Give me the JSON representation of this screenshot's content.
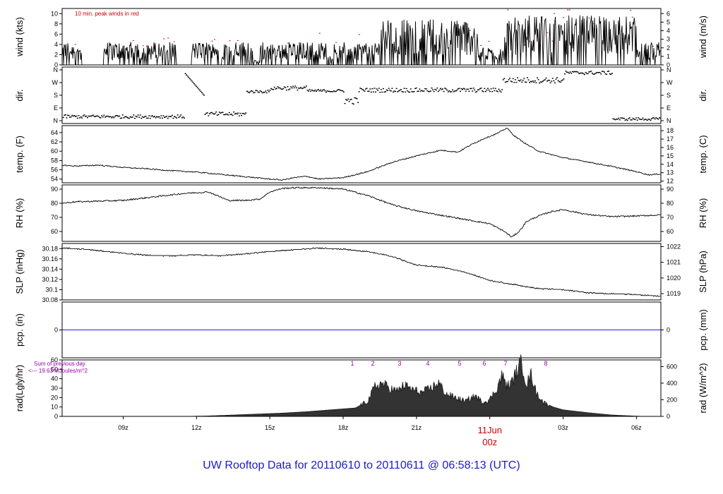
{
  "title": "UW Rooftop Data for 20110610  to  20110611 @ 06:58:13  (UTC)",
  "chart_data": {
    "type": "line",
    "x_ticks": [
      "09z",
      "12z",
      "15z",
      "18z",
      "21z",
      "00z",
      "03z",
      "06z"
    ],
    "date_label": "11Jun",
    "date_sublabel": "00z",
    "panels": [
      {
        "id": "wind",
        "ylabel_left": "wind (kts)",
        "ylabel_right": "wind (m/s)",
        "ylim": [
          0,
          11
        ],
        "yticks_left": [
          0,
          2,
          4,
          6,
          8,
          10
        ],
        "yticks_right": [
          0,
          1,
          2,
          3,
          4,
          5,
          6
        ],
        "note": "10 min. peak winds in red",
        "series": [
          {
            "type": "line",
            "color": "#000000"
          },
          {
            "type": "points",
            "color": "#cc0000"
          }
        ]
      },
      {
        "id": "dir",
        "ylabel_left": "dir.",
        "ylabel_right": "dir.",
        "ylim": [
          0,
          360
        ],
        "yticks_left": [
          "N",
          "E",
          "S",
          "W",
          "N"
        ],
        "yticks_right": [
          "N",
          "E",
          "S",
          "W",
          "N"
        ],
        "series": [
          {
            "type": "points",
            "color": "#000000"
          }
        ]
      },
      {
        "id": "temp",
        "ylabel_left": "temp. (F)",
        "ylabel_right": "temp. (C)",
        "ylim": [
          53.2,
          65.5
        ],
        "yticks_left": [
          54,
          56,
          58,
          60,
          62,
          64
        ],
        "yticks_right": [
          12,
          13,
          14,
          15,
          16,
          17,
          18
        ],
        "series": [
          {
            "type": "line",
            "color": "#000000",
            "points": [
              [
                6.5,
                57
              ],
              [
                7,
                56.8
              ],
              [
                8,
                57
              ],
              [
                9,
                56.5
              ],
              [
                10,
                56.2
              ],
              [
                11,
                55.8
              ],
              [
                12,
                55.5
              ],
              [
                13,
                55
              ],
              [
                14,
                54.5
              ],
              [
                15,
                54
              ],
              [
                15.5,
                53.8
              ],
              [
                16,
                54.3
              ],
              [
                16.5,
                54.6
              ],
              [
                17,
                54
              ],
              [
                18,
                54.3
              ],
              [
                19,
                55.6
              ],
              [
                20,
                57.6
              ],
              [
                21,
                59
              ],
              [
                22,
                60.2
              ],
              [
                22.7,
                59.8
              ],
              [
                23.2,
                61.3
              ],
              [
                23.8,
                62.8
              ],
              [
                24.3,
                63.8
              ],
              [
                24.7,
                65
              ],
              [
                25,
                63.3
              ],
              [
                25.5,
                61.5
              ],
              [
                26,
                60
              ],
              [
                27,
                58.6
              ],
              [
                28,
                57.7
              ],
              [
                29,
                56.7
              ],
              [
                30,
                55.6
              ],
              [
                30.5,
                54.9
              ],
              [
                31,
                55.1
              ]
            ]
          }
        ]
      },
      {
        "id": "rh",
        "ylabel_left": "RH (%)",
        "ylabel_right": "RH (%)",
        "ylim": [
          53,
          93
        ],
        "yticks_left": [
          60,
          70,
          80,
          90
        ],
        "yticks_right": [
          60,
          70,
          80,
          90
        ],
        "series": [
          {
            "type": "line",
            "color": "#000000",
            "points": [
              [
                6.5,
                80
              ],
              [
                7,
                81
              ],
              [
                9,
                82
              ],
              [
                10.5,
                85
              ],
              [
                11.5,
                87
              ],
              [
                12.5,
                88
              ],
              [
                13.3,
                82
              ],
              [
                14,
                82
              ],
              [
                14.6,
                83
              ],
              [
                15,
                88
              ],
              [
                15.5,
                90.5
              ],
              [
                16,
                91
              ],
              [
                17,
                91
              ],
              [
                18,
                90
              ],
              [
                19,
                85.5
              ],
              [
                20,
                79
              ],
              [
                21,
                74.6
              ],
              [
                22,
                71.5
              ],
              [
                23,
                68.5
              ],
              [
                24,
                65.5
              ],
              [
                24.6,
                60
              ],
              [
                24.9,
                56
              ],
              [
                25.2,
                60
              ],
              [
                25.5,
                67
              ],
              [
                26,
                71
              ],
              [
                26.5,
                74
              ],
              [
                27,
                75.5
              ],
              [
                28,
                72
              ],
              [
                29,
                70.5
              ],
              [
                30,
                71
              ],
              [
                31,
                71.7
              ]
            ]
          }
        ]
      },
      {
        "id": "slp",
        "ylabel_left": "SLP (inHg)",
        "ylabel_right": "SLP (hPa)",
        "ylim": [
          30.08,
          30.19
        ],
        "yticks_left": [
          30.08,
          30.1,
          30.12,
          30.14,
          30.16,
          30.18
        ],
        "yticks_right": [
          1019,
          1020,
          1021,
          1022
        ],
        "series": [
          {
            "type": "line",
            "color": "#000000",
            "points": [
              [
                6.5,
                30.181
              ],
              [
                7.5,
                30.179
              ],
              [
                8.5,
                30.173
              ],
              [
                10,
                30.167
              ],
              [
                11,
                30.166
              ],
              [
                12,
                30.168
              ],
              [
                13,
                30.166
              ],
              [
                14,
                30.17
              ],
              [
                15,
                30.174
              ],
              [
                16,
                30.178
              ],
              [
                17,
                30.181
              ],
              [
                18,
                30.179
              ],
              [
                19,
                30.174
              ],
              [
                20,
                30.165
              ],
              [
                21,
                30.148
              ],
              [
                22,
                30.144
              ],
              [
                23,
                30.134
              ],
              [
                24,
                30.118
              ],
              [
                25,
                30.11
              ],
              [
                26,
                30.102
              ],
              [
                27,
                30.1
              ],
              [
                28,
                30.094
              ],
              [
                29,
                30.092
              ],
              [
                30,
                30.09
              ],
              [
                31,
                30.087
              ]
            ]
          }
        ]
      },
      {
        "id": "pcp",
        "ylabel_left": "pcp. (in)",
        "ylabel_right": "pcp. (mm)",
        "ylim": [
          -1,
          1
        ],
        "yticks_left": [
          0
        ],
        "yticks_right": [
          0
        ],
        "series": [
          {
            "type": "line",
            "color": "#2222cc",
            "points": [
              [
                6.5,
                0
              ],
              [
                31,
                0
              ]
            ]
          }
        ]
      },
      {
        "id": "rad",
        "ylabel_left": "rad(Lgly/hr)",
        "ylabel_right": "rad (W/m^2)",
        "ylim": [
          0,
          60
        ],
        "yticks_left": [
          0,
          10,
          20,
          30,
          40,
          50,
          60
        ],
        "yticks_right": [
          0,
          200,
          400,
          600
        ],
        "note_line1": "Sum of previous day",
        "note_line2": "<--- 19.63 MJoules/m^2",
        "hour_marks": [
          "1",
          "2",
          "3",
          "4",
          "5",
          "6",
          "7",
          "8"
        ],
        "series": [
          {
            "type": "area",
            "color": "#222222",
            "points": [
              [
                11.5,
                0
              ],
              [
                12.5,
                0.5
              ],
              [
                13.5,
                1.5
              ],
              [
                14.5,
                2.5
              ],
              [
                15.5,
                3.5
              ],
              [
                16.5,
                5
              ],
              [
                17.5,
                7
              ],
              [
                18.5,
                9
              ],
              [
                19,
                16
              ],
              [
                19.3,
                32
              ],
              [
                19.6,
                35
              ],
              [
                19.9,
                30
              ],
              [
                20.2,
                27
              ],
              [
                20.5,
                33
              ],
              [
                20.8,
                29
              ],
              [
                21.2,
                25
              ],
              [
                21.6,
                30
              ],
              [
                21.9,
                36
              ],
              [
                22.2,
                24
              ],
              [
                22.6,
                20
              ],
              [
                23,
                16
              ],
              [
                23.4,
                22
              ],
              [
                23.7,
                15
              ],
              [
                24,
                18
              ],
              [
                24.3,
                30
              ],
              [
                24.5,
                44
              ],
              [
                24.7,
                32
              ],
              [
                24.9,
                36
              ],
              [
                25.1,
                48
              ],
              [
                25.3,
                58
              ],
              [
                25.5,
                34
              ],
              [
                25.7,
                45
              ],
              [
                25.9,
                25
              ],
              [
                26.2,
                15
              ],
              [
                26.6,
                10
              ],
              [
                27,
                7
              ],
              [
                28,
                4
              ],
              [
                29,
                1.5
              ],
              [
                30,
                0.3
              ],
              [
                30.5,
                0
              ]
            ]
          }
        ]
      }
    ]
  }
}
